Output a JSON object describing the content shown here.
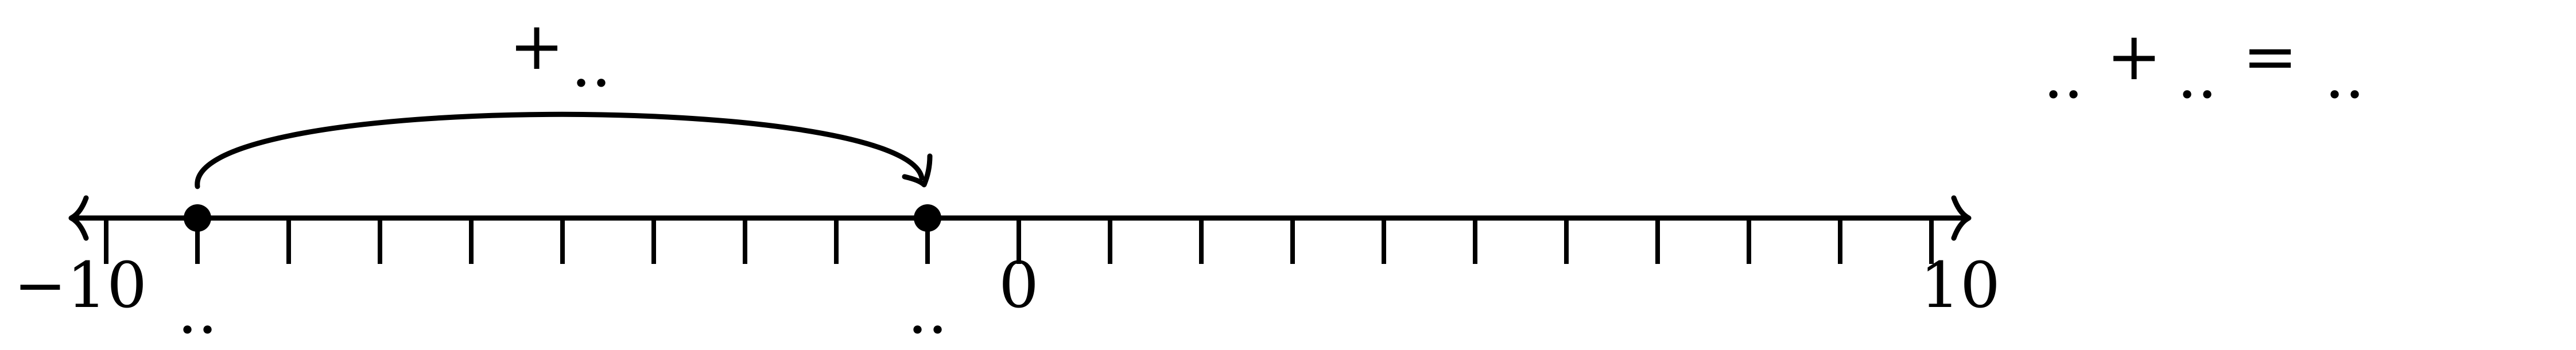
{
  "number_line": {
    "min": -10,
    "max": 10,
    "step": 1,
    "end_labels": {
      "left": "−10",
      "right": "10"
    },
    "zero_label": "0",
    "points": [
      {
        "value": -9,
        "label": ".."
      },
      {
        "value": -1,
        "label": ".."
      }
    ]
  },
  "jump": {
    "from": -9,
    "to": -1,
    "label_sign": "+",
    "label_blank": ".."
  },
  "equation": {
    "blank_1": "..",
    "plus": "+",
    "blank_2": "..",
    "equals": "=",
    "blank_3": ".."
  },
  "colors": {
    "ink": "#000000",
    "background": "#ffffff"
  }
}
